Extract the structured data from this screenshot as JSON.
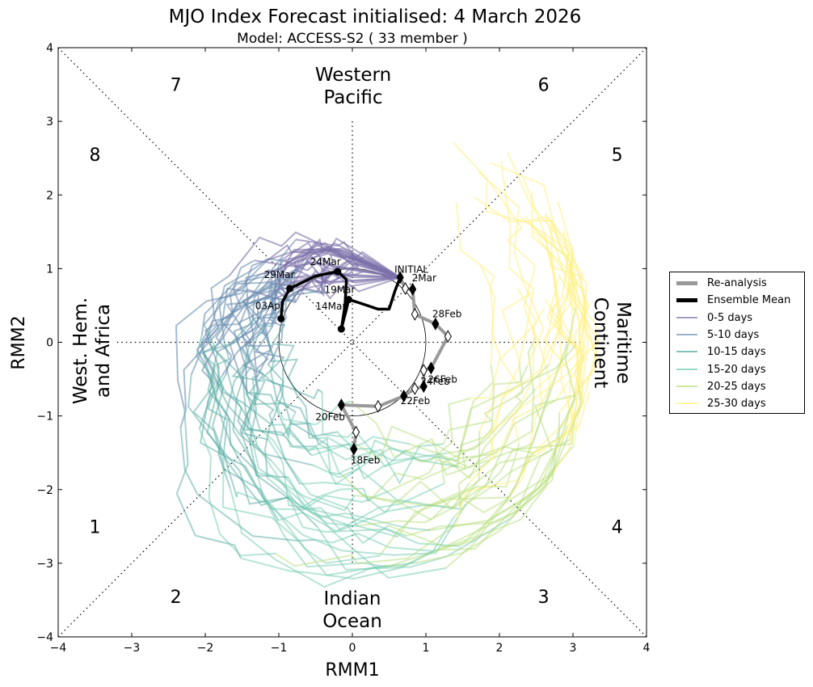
{
  "chart_data": {
    "type": "scatter",
    "title": "MJO Index Forecast initialised:  4  March 2026",
    "subtitle": "Model: ACCESS-S2 ( 33 member )",
    "xlabel": "RMM1",
    "ylabel": "RMM2",
    "xlim": [
      -4,
      4
    ],
    "ylim": [
      -4,
      4
    ],
    "xticks": [
      "−4",
      "−3",
      "−2",
      "−1",
      "0",
      "1",
      "2",
      "3",
      "4"
    ],
    "yticks": [
      "4",
      "3",
      "2",
      "1",
      "0",
      "−1",
      "−2",
      "−3",
      "−4"
    ],
    "phases": [
      {
        "label": "1",
        "x": -3.5,
        "y": -2.5
      },
      {
        "label": "2",
        "x": -2.4,
        "y": -3.45
      },
      {
        "label": "3",
        "x": 2.6,
        "y": -3.45
      },
      {
        "label": "4",
        "x": 3.6,
        "y": -2.5
      },
      {
        "label": "5",
        "x": 3.6,
        "y": 2.55
      },
      {
        "label": "6",
        "x": 2.6,
        "y": 3.5
      },
      {
        "label": "7",
        "x": -2.4,
        "y": 3.5
      },
      {
        "label": "8",
        "x": -3.5,
        "y": 2.55
      }
    ],
    "regions": {
      "top": [
        "Western",
        "Pacific"
      ],
      "bottom": [
        "Indian",
        "Ocean"
      ],
      "left": [
        "West. Hem.",
        "and Africa"
      ],
      "right": [
        "Maritime",
        "Continent"
      ]
    },
    "reanalysis": {
      "name": "Re-analysis",
      "color": "#999999",
      "points": [
        {
          "x": 0.02,
          "y": -1.45,
          "filled": true,
          "label": "18Feb"
        },
        {
          "x": 0.05,
          "y": -1.22,
          "filled": false,
          "label": ""
        },
        {
          "x": -0.15,
          "y": -0.85,
          "filled": true,
          "label": "20Feb"
        },
        {
          "x": 0.35,
          "y": -0.87,
          "filled": false,
          "label": ""
        },
        {
          "x": 0.7,
          "y": -0.73,
          "filled": true,
          "label": "22Feb"
        },
        {
          "x": 0.85,
          "y": -0.63,
          "filled": false,
          "label": ""
        },
        {
          "x": 0.97,
          "y": -0.6,
          "filled": true,
          "label": "24Feb"
        },
        {
          "x": 0.97,
          "y": -0.38,
          "filled": false,
          "label": ""
        },
        {
          "x": 1.07,
          "y": -0.35,
          "filled": true,
          "label": "26Feb"
        },
        {
          "x": 1.3,
          "y": 0.08,
          "filled": false,
          "label": ""
        },
        {
          "x": 1.13,
          "y": 0.25,
          "filled": true,
          "label": "28Feb"
        },
        {
          "x": 0.85,
          "y": 0.38,
          "filled": false,
          "label": ""
        },
        {
          "x": 0.82,
          "y": 0.72,
          "filled": true,
          "label": "2Mar"
        },
        {
          "x": 0.72,
          "y": 0.73,
          "filled": false,
          "label": ""
        },
        {
          "x": 0.65,
          "y": 0.88,
          "filled": true,
          "label": "INITIAL"
        }
      ]
    },
    "ensemble_mean": {
      "name": "Ensemble Mean",
      "color": "#000000",
      "path": [
        [
          0.65,
          0.88
        ],
        [
          0.58,
          0.7
        ],
        [
          0.5,
          0.45
        ],
        [
          0.35,
          0.45
        ],
        [
          0.2,
          0.5
        ],
        [
          0.05,
          0.55
        ],
        [
          -0.05,
          0.58
        ],
        [
          -0.08,
          0.45
        ],
        [
          -0.12,
          0.3
        ],
        [
          -0.15,
          0.18
        ],
        [
          -0.1,
          0.5
        ],
        [
          -0.08,
          0.85
        ],
        [
          -0.2,
          0.96
        ],
        [
          -0.5,
          0.9
        ],
        [
          -0.85,
          0.73
        ],
        [
          -0.95,
          0.55
        ],
        [
          -0.97,
          0.32
        ]
      ],
      "markers": [
        {
          "x": -0.15,
          "y": 0.18,
          "label": "14Mar"
        },
        {
          "x": -0.05,
          "y": 0.58,
          "label": "19Mar"
        },
        {
          "x": -0.2,
          "y": 0.96,
          "label": "24Mar"
        },
        {
          "x": -0.85,
          "y": 0.73,
          "label": "29Mar"
        },
        {
          "x": -0.97,
          "y": 0.32,
          "label": "03Apr"
        }
      ]
    },
    "series": [
      {
        "name": "0-5 days",
        "color": "#7b6fa8"
      },
      {
        "name": "5-10 days",
        "color": "#6d8fb0"
      },
      {
        "name": "10-15 days",
        "color": "#4fa7a0"
      },
      {
        "name": "15-20 days",
        "color": "#6fcab0"
      },
      {
        "name": "20-25 days",
        "color": "#b5de7a"
      },
      {
        "name": "25-30 days",
        "color": "#fff07a"
      }
    ],
    "unit_circle_radius": 1,
    "legend_position": "right"
  }
}
